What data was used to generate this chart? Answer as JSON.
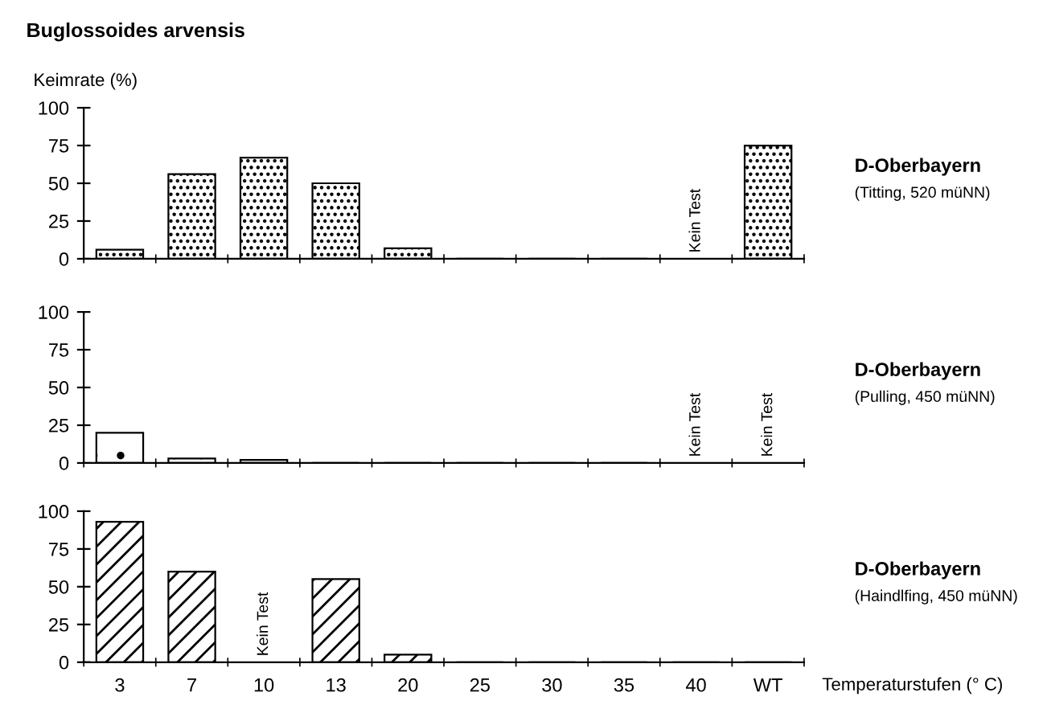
{
  "chart_data": [
    {
      "type": "bar",
      "title": "Buglossoides arvensis",
      "ylabel": "Keimrate (%)",
      "categories": [
        null,
        null,
        null,
        null,
        null,
        null,
        null,
        null,
        null,
        null
      ],
      "series": [
        {
          "color": "#000000",
          "values": [
            6,
            56,
            67,
            50,
            7,
            0,
            0,
            0,
            null,
            75
          ]
        }
      ],
      "ylim": [
        0,
        100
      ],
      "yticks": [
        0,
        25,
        50,
        75,
        100
      ],
      "grid": false,
      "legend": false,
      "tick_labels": "y",
      "annotations": [
        "Kein Test",
        "D-Oberbayern",
        "(Titting, 520 müNN)"
      ]
    },
    {
      "type": "bar",
      "categories": [
        null,
        null,
        null,
        null,
        null,
        null,
        null,
        null,
        null,
        null
      ],
      "series": [
        {
          "color": "#000000",
          "values": [
            20,
            3,
            2,
            0,
            0,
            0,
            0,
            0,
            null,
            null
          ]
        }
      ],
      "ylim": [
        0,
        100
      ],
      "yticks": [
        0,
        25,
        50,
        75,
        100
      ],
      "grid": false,
      "legend": false,
      "tick_labels": "y",
      "annotations": [
        "Kein Test",
        "Kein Test",
        "D-Oberbayern",
        "(Pulling, 450 müNN)"
      ]
    },
    {
      "type": "bar",
      "xlabel": "Temperaturstufen (° C)",
      "categories": [
        "3",
        "7",
        "10",
        "13",
        "20",
        "25",
        "30",
        "35",
        "40",
        "WT"
      ],
      "series": [
        {
          "color": "#000000",
          "values": [
            93,
            60,
            null,
            55,
            5,
            0,
            0,
            0,
            0,
            0
          ]
        }
      ],
      "ylim": [
        0,
        100
      ],
      "yticks": [
        0,
        25,
        50,
        75,
        100
      ],
      "grid": false,
      "legend": false,
      "annotations": [
        "Kein Test",
        "D-Oberbayern",
        "(Haindlfing, 450 müNN)"
      ]
    }
  ]
}
